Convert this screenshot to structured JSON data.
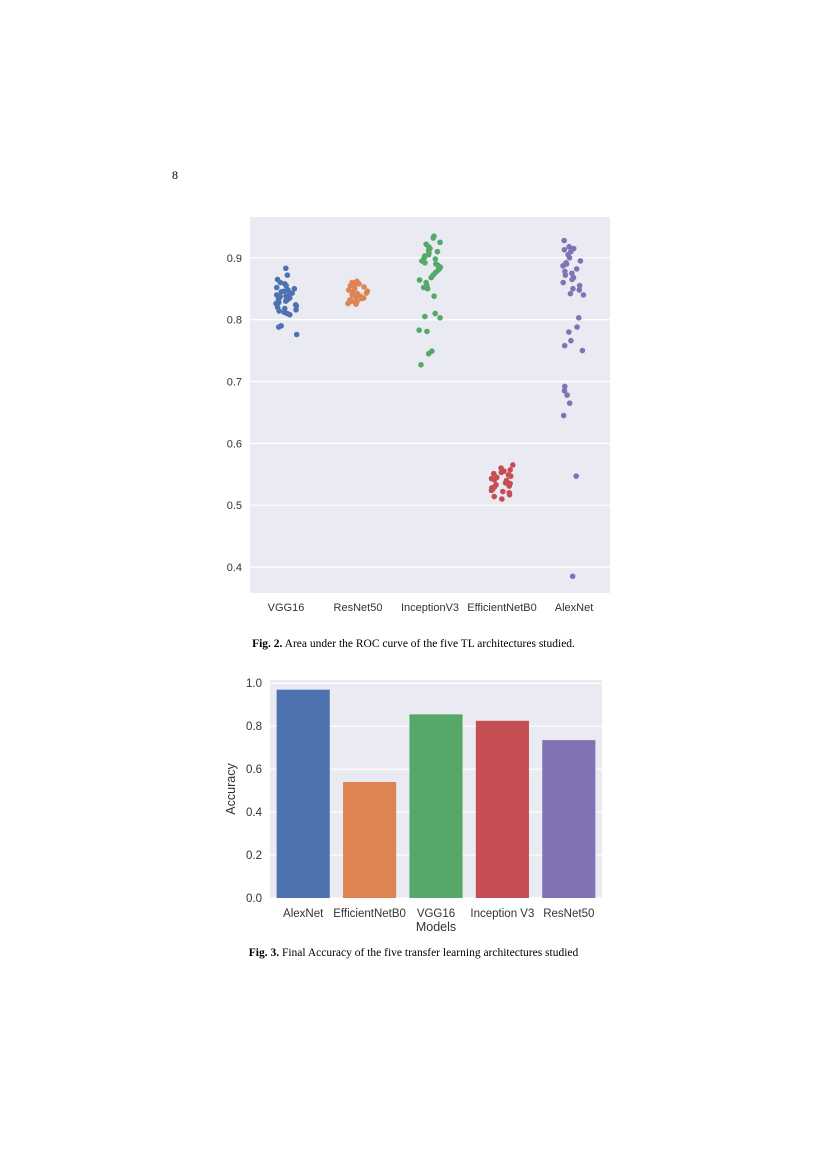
{
  "page_number": "8",
  "fig2_caption": {
    "label": "Fig. 2.",
    "text": " Area under the ROC curve of the five TL architectures studied."
  },
  "fig3_caption": {
    "label": "Fig. 3.",
    "text": " Final Accuracy of the five transfer learning architectures studied"
  },
  "chart_data": [
    {
      "type": "scatter",
      "subtype": "strip",
      "title": "",
      "xlabel": "",
      "ylabel": "",
      "categories": [
        "VGG16",
        "ResNet50",
        "InceptionV3",
        "EfficientNetB0",
        "AlexNet"
      ],
      "yticks": [
        0.4,
        0.5,
        0.6,
        0.7,
        0.8,
        0.9
      ],
      "ylim": [
        0.358,
        0.966
      ],
      "grid": true,
      "colors": [
        "#4c72b0",
        "#dd8452",
        "#55a868",
        "#c44e52",
        "#8172b3"
      ],
      "values": [
        [
          0.883,
          0.872,
          0.865,
          0.86,
          0.858,
          0.855,
          0.852,
          0.85,
          0.848,
          0.846,
          0.845,
          0.843,
          0.842,
          0.84,
          0.838,
          0.837,
          0.835,
          0.833,
          0.832,
          0.83,
          0.828,
          0.826,
          0.824,
          0.822,
          0.82,
          0.818,
          0.816,
          0.814,
          0.812,
          0.81,
          0.808,
          0.79,
          0.788,
          0.776
        ],
        [
          0.862,
          0.86,
          0.858,
          0.856,
          0.855,
          0.853,
          0.851,
          0.85,
          0.848,
          0.846,
          0.845,
          0.843,
          0.842,
          0.84,
          0.838,
          0.837,
          0.835,
          0.834,
          0.832,
          0.83,
          0.829,
          0.828,
          0.826,
          0.825
        ],
        [
          0.935,
          0.932,
          0.925,
          0.922,
          0.918,
          0.915,
          0.912,
          0.91,
          0.908,
          0.905,
          0.903,
          0.9,
          0.898,
          0.895,
          0.892,
          0.89,
          0.888,
          0.885,
          0.882,
          0.88,
          0.876,
          0.872,
          0.868,
          0.864,
          0.86,
          0.855,
          0.852,
          0.85,
          0.838,
          0.81,
          0.805,
          0.803,
          0.783,
          0.781,
          0.749,
          0.745,
          0.727
        ],
        [
          0.565,
          0.56,
          0.557,
          0.555,
          0.553,
          0.551,
          0.549,
          0.547,
          0.545,
          0.543,
          0.541,
          0.54,
          0.538,
          0.536,
          0.535,
          0.533,
          0.531,
          0.53,
          0.528,
          0.526,
          0.524,
          0.522,
          0.52,
          0.517,
          0.514,
          0.51
        ],
        [
          0.928,
          0.918,
          0.915,
          0.913,
          0.91,
          0.905,
          0.9,
          0.895,
          0.892,
          0.89,
          0.887,
          0.882,
          0.878,
          0.875,
          0.872,
          0.868,
          0.865,
          0.86,
          0.855,
          0.85,
          0.848,
          0.842,
          0.84,
          0.803,
          0.788,
          0.78,
          0.766,
          0.758,
          0.75,
          0.692,
          0.685,
          0.678,
          0.665,
          0.645,
          0.547,
          0.385
        ]
      ]
    },
    {
      "type": "bar",
      "title": "",
      "xlabel": "Models",
      "ylabel": "Accuracy",
      "categories": [
        "AlexNet",
        "EfficientNetB0",
        "VGG16",
        "Inception V3",
        "ResNet50"
      ],
      "values": [
        0.97,
        0.54,
        0.855,
        0.825,
        0.735
      ],
      "yticks": [
        "0.0",
        "0.2",
        "0.4",
        "0.6",
        "0.8",
        "1.0"
      ],
      "ylim": [
        0,
        1.015
      ],
      "grid": true,
      "colors": [
        "#4c72b0",
        "#dd8452",
        "#55a868",
        "#c44e52",
        "#8172b3"
      ]
    }
  ]
}
